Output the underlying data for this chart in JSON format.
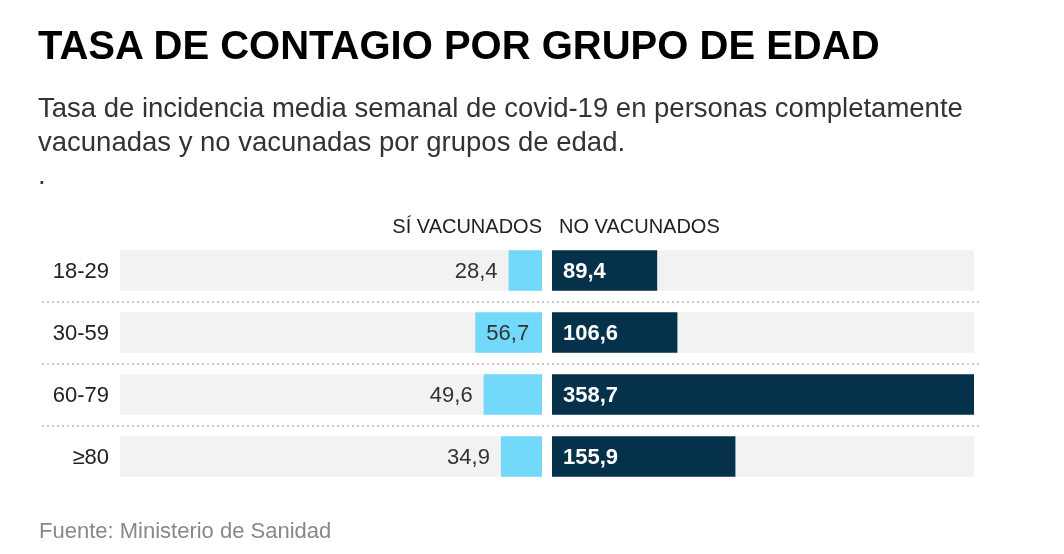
{
  "chart_data": [
    {
      "type": "bar",
      "orientation": "horizontal",
      "title": "TASA DE CONTAGIO POR GRUPO DE EDAD",
      "subtitle": "Tasa de incidencia media semanal de covid-19 en personas completamente vacunadas y no vacunadas por grupos de edad.\n.",
      "categories": [
        "18-29",
        "30-59",
        "60-79",
        "≥80"
      ],
      "series": [
        {
          "name": "SÍ VACUNADOS",
          "color": "#72d9fa",
          "values": [
            28.4,
            56.7,
            49.6,
            34.9
          ],
          "value_labels": [
            "28,4",
            "56,7",
            "49,6",
            "34,9"
          ]
        }
      ],
      "xlim": [
        358.7,
        0
      ],
      "tick_labels": "y",
      "grid": "y",
      "annotations": [
        "Fuente: Ministerio de Sanidad"
      ]
    },
    {
      "type": "bar",
      "orientation": "horizontal",
      "categories": [
        null,
        null,
        null,
        null
      ],
      "series": [
        {
          "name": "NO VACUNADOS",
          "color": "#05314a",
          "values": [
            89.4,
            106.6,
            358.7,
            155.9
          ],
          "value_labels": [
            "89,4",
            "106,6",
            "358,7",
            "155,9"
          ]
        }
      ],
      "xlim": [
        0,
        358.7
      ],
      "tick_labels": false,
      "grid": "y"
    }
  ]
}
